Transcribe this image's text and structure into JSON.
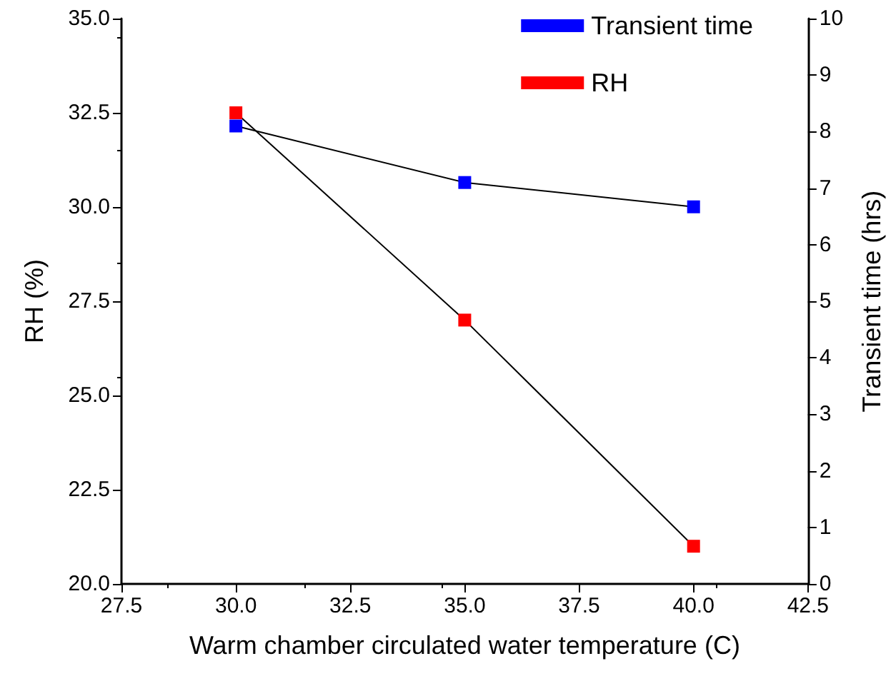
{
  "chart_data": {
    "type": "line",
    "xlabel": "Warm chamber circulated water temperature (C)",
    "ylabel": "RH (%)",
    "y2label": "Transient time (hrs)",
    "x": [
      30,
      35,
      40
    ],
    "series": [
      {
        "name": "Transient time",
        "color": "#0000ff",
        "values": [
          8.1,
          7.1,
          6.67
        ],
        "axis": "y2"
      },
      {
        "name": "RH",
        "color": "#ff0000",
        "values": [
          32.5,
          27.0,
          21.0
        ]
      }
    ],
    "xlim": [
      27.5,
      42.5
    ],
    "xticks": [
      {
        "value": 27.5,
        "label": "27.5"
      },
      {
        "value": 30,
        "label": "30.0"
      },
      {
        "value": 32.5,
        "label": "32.5"
      },
      {
        "value": 35,
        "label": "35.0"
      },
      {
        "value": 37.5,
        "label": "37.5"
      },
      {
        "value": 40,
        "label": "40.0"
      },
      {
        "value": 42.5,
        "label": "42.5"
      }
    ],
    "ylim": [
      20,
      35
    ],
    "yticks": [
      {
        "value": 20,
        "label": "20.0"
      },
      {
        "value": 22.5,
        "label": "22.5"
      },
      {
        "value": 25,
        "label": "25.0"
      },
      {
        "value": 27.5,
        "label": "27.5"
      },
      {
        "value": 30,
        "label": "30.0"
      },
      {
        "value": 32.5,
        "label": "32.5"
      },
      {
        "value": 35,
        "label": "35.0"
      }
    ],
    "y2lim": [
      0,
      10
    ],
    "y2ticks": [
      0,
      1,
      2,
      3,
      4,
      5,
      6,
      7,
      8,
      9,
      10
    ],
    "legend": "top right",
    "grid": false,
    "marker": "square",
    "line_style": "solid"
  }
}
